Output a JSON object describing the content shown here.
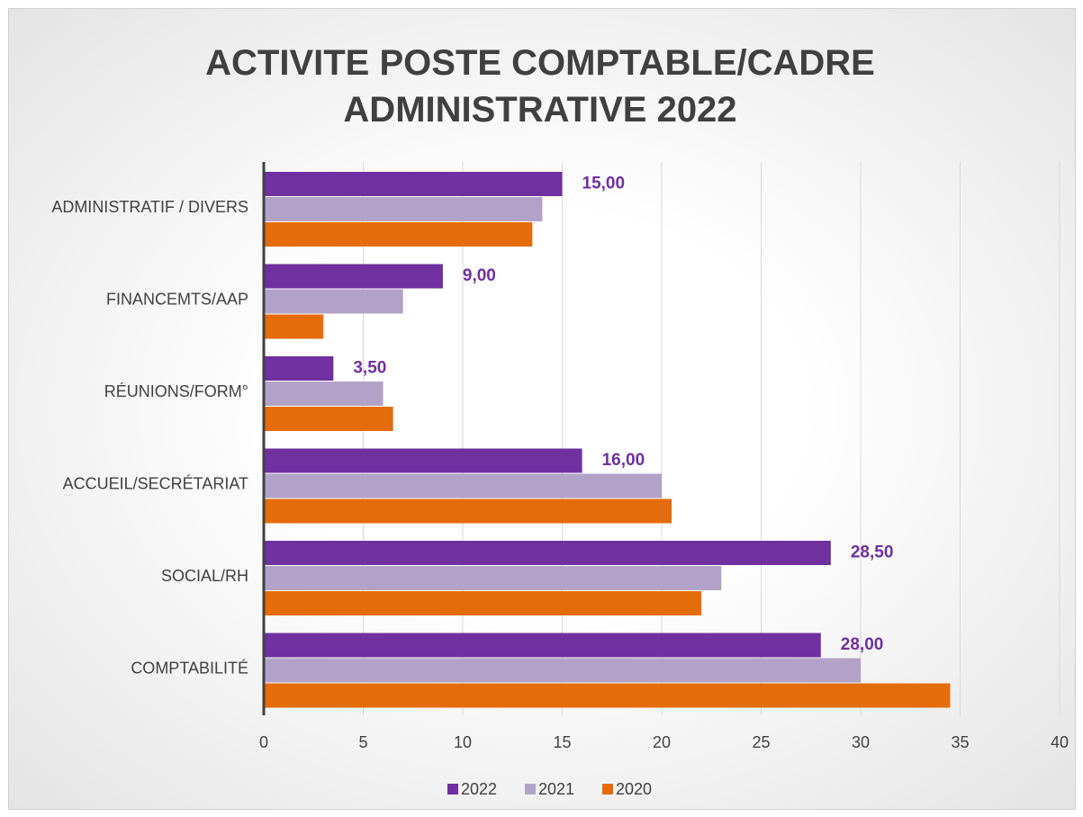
{
  "chart_data": {
    "type": "bar",
    "orientation": "horizontal",
    "title": "ACTIVITE POSTE COMPTABLE/CADRE ADMINISTRATIVE 2022",
    "categories": [
      "ADMINISTRATIF / DIVERS",
      "FINANCEMTS/AAP",
      "RÉUNIONS/FORM°",
      "ACCUEIL/SECRÉTARIAT",
      "SOCIAL/RH",
      "COMPTABILITÉ"
    ],
    "series": [
      {
        "name": "2022",
        "color": "#7030a0",
        "values": [
          15,
          9,
          3.5,
          16,
          28.5,
          28
        ],
        "value_labels": [
          "15,00",
          "9,00",
          "3,50",
          "16,00",
          "28,50",
          "28,00"
        ]
      },
      {
        "name": "2021",
        "color": "#b3a2c7",
        "values": [
          14,
          7,
          6,
          20,
          23,
          30
        ]
      },
      {
        "name": "2020",
        "color": "#e46c0a",
        "values": [
          13.5,
          3,
          6.5,
          20.5,
          22,
          34.5
        ]
      }
    ],
    "xlim": [
      0,
      40
    ],
    "xticks": [
      0,
      5,
      10,
      15,
      20,
      25,
      30,
      35,
      40
    ],
    "grid": true,
    "legend": "bottom"
  }
}
